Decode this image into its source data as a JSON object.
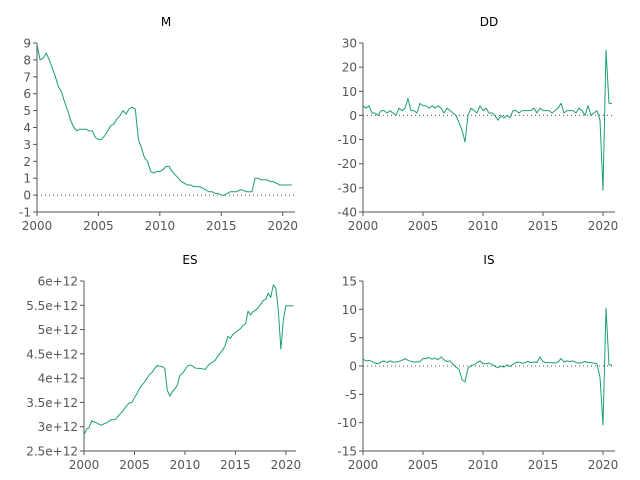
{
  "chart_data": [
    {
      "type": "line",
      "title": "M",
      "xlim": [
        2000,
        2021
      ],
      "ylim": [
        -1,
        9
      ],
      "xticks": [
        2000,
        2005,
        2010,
        2015,
        2020
      ],
      "yticks": [
        -1,
        0,
        1,
        2,
        3,
        4,
        5,
        6,
        7,
        8,
        9
      ],
      "ytick_labels": [
        "-1",
        "0",
        "1",
        "2",
        "3",
        "4",
        "5",
        "6",
        "7",
        "8",
        "9"
      ],
      "zero_line": true,
      "grid": false,
      "series": [
        {
          "color": "#1b9e77",
          "x": [
            2000.0,
            2000.25,
            2000.5,
            2000.75,
            2001.0,
            2001.25,
            2001.5,
            2001.75,
            2002.0,
            2002.25,
            2002.5,
            2002.75,
            2003.0,
            2003.25,
            2003.5,
            2003.75,
            2004.0,
            2004.25,
            2004.5,
            2004.75,
            2005.0,
            2005.25,
            2005.5,
            2005.75,
            2006.0,
            2006.25,
            2006.5,
            2006.75,
            2007.0,
            2007.25,
            2007.5,
            2007.75,
            2008.0,
            2008.25,
            2008.5,
            2008.75,
            2009.0,
            2009.25,
            2009.5,
            2009.75,
            2010.0,
            2010.25,
            2010.5,
            2010.75,
            2011.0,
            2011.25,
            2011.5,
            2011.75,
            2012.0,
            2012.25,
            2012.5,
            2012.75,
            2013.0,
            2013.25,
            2013.5,
            2013.75,
            2014.0,
            2014.25,
            2014.5,
            2014.75,
            2015.0,
            2015.25,
            2015.5,
            2015.75,
            2016.0,
            2016.25,
            2016.5,
            2016.75,
            2017.0,
            2017.25,
            2017.5,
            2017.75,
            2018.0,
            2018.25,
            2018.5,
            2018.75,
            2019.0,
            2019.25,
            2019.5,
            2019.75,
            2020.0,
            2020.25,
            2020.5,
            2020.75
          ],
          "y": [
            8.9,
            8.0,
            8.1,
            8.4,
            8.0,
            7.5,
            7.0,
            6.4,
            6.1,
            5.5,
            5.0,
            4.4,
            4.0,
            3.8,
            3.9,
            3.9,
            3.9,
            3.8,
            3.8,
            3.4,
            3.3,
            3.3,
            3.5,
            3.8,
            4.1,
            4.2,
            4.5,
            4.7,
            5.0,
            4.8,
            5.1,
            5.2,
            5.1,
            3.3,
            2.8,
            2.2,
            2.0,
            1.4,
            1.3,
            1.4,
            1.4,
            1.5,
            1.7,
            1.7,
            1.4,
            1.2,
            1.0,
            0.8,
            0.7,
            0.6,
            0.6,
            0.5,
            0.5,
            0.5,
            0.4,
            0.3,
            0.2,
            0.2,
            0.1,
            0.1,
            0.0,
            0.0,
            0.1,
            0.2,
            0.2,
            0.2,
            0.3,
            0.3,
            0.2,
            0.2,
            0.2,
            1.0,
            1.0,
            0.9,
            0.9,
            0.9,
            0.8,
            0.8,
            0.7,
            0.6,
            0.6,
            0.6,
            0.6,
            0.6
          ]
        }
      ]
    },
    {
      "type": "line",
      "title": "DD",
      "xlim": [
        2000,
        2021
      ],
      "ylim": [
        -40,
        30
      ],
      "xticks": [
        2000,
        2005,
        2010,
        2015,
        2020
      ],
      "yticks": [
        -40,
        -30,
        -20,
        -10,
        0,
        10,
        20,
        30
      ],
      "ytick_labels": [
        "-40",
        "-30",
        "-20",
        "-10",
        "0",
        "10",
        "20",
        "30"
      ],
      "zero_line": true,
      "grid": false,
      "series": [
        {
          "color": "#1b9e77",
          "x": [
            2000.0,
            2000.25,
            2000.5,
            2000.75,
            2001.0,
            2001.25,
            2001.5,
            2001.75,
            2002.0,
            2002.25,
            2002.5,
            2002.75,
            2003.0,
            2003.25,
            2003.5,
            2003.75,
            2004.0,
            2004.25,
            2004.5,
            2004.75,
            2005.0,
            2005.25,
            2005.5,
            2005.75,
            2006.0,
            2006.25,
            2006.5,
            2006.75,
            2007.0,
            2007.25,
            2007.5,
            2007.75,
            2008.0,
            2008.25,
            2008.5,
            2008.75,
            2009.0,
            2009.25,
            2009.5,
            2009.75,
            2010.0,
            2010.25,
            2010.5,
            2010.75,
            2011.0,
            2011.25,
            2011.5,
            2011.75,
            2012.0,
            2012.25,
            2012.5,
            2012.75,
            2013.0,
            2013.25,
            2013.5,
            2013.75,
            2014.0,
            2014.25,
            2014.5,
            2014.75,
            2015.0,
            2015.25,
            2015.5,
            2015.75,
            2016.0,
            2016.25,
            2016.5,
            2016.75,
            2017.0,
            2017.25,
            2017.5,
            2017.75,
            2018.0,
            2018.25,
            2018.5,
            2018.75,
            2019.0,
            2019.25,
            2019.5,
            2019.75,
            2020.0,
            2020.25,
            2020.5,
            2020.75
          ],
          "y": [
            4,
            3,
            4,
            1,
            1,
            0,
            2,
            2,
            1,
            2,
            1,
            0,
            3,
            2,
            3,
            7,
            2,
            2,
            1,
            5,
            4,
            4,
            3,
            4,
            3,
            4,
            3,
            1,
            3,
            2,
            1,
            0,
            -3,
            -6,
            -11,
            0,
            3,
            2,
            1,
            4,
            2,
            3,
            1,
            1,
            0,
            -2,
            0,
            -1,
            0,
            -1,
            2,
            2,
            1,
            2,
            2,
            2,
            2,
            3,
            1,
            3,
            2,
            2,
            2,
            1,
            2,
            3,
            5,
            1,
            2,
            2,
            2,
            1,
            3,
            2,
            0,
            4,
            0,
            1,
            2,
            -2,
            -31,
            27,
            5,
            5
          ]
        }
      ]
    },
    {
      "type": "line",
      "title": "ES",
      "xlim": [
        2000,
        2021
      ],
      "ylim": [
        2500000000000.0,
        6000000000000.0
      ],
      "xticks": [
        2000,
        2005,
        2010,
        2015,
        2020
      ],
      "yticks": [
        2500000000000.0,
        3000000000000.0,
        3500000000000.0,
        4000000000000.0,
        4500000000000.0,
        5000000000000.0,
        5500000000000.0,
        6000000000000.0
      ],
      "ytick_labels": [
        "2.5e+12",
        "3e+12",
        "3.5e+12",
        "4e+12",
        "4.5e+12",
        "5e+12",
        "5.5e+12",
        "6e+12"
      ],
      "zero_line": false,
      "grid": false,
      "series": [
        {
          "color": "#1b9e77",
          "x": [
            2000.0,
            2000.25,
            2000.5,
            2000.75,
            2001.0,
            2001.25,
            2001.5,
            2001.75,
            2002.0,
            2002.25,
            2002.5,
            2002.75,
            2003.0,
            2003.25,
            2003.5,
            2003.75,
            2004.0,
            2004.25,
            2004.5,
            2004.75,
            2005.0,
            2005.25,
            2005.5,
            2005.75,
            2006.0,
            2006.25,
            2006.5,
            2006.75,
            2007.0,
            2007.25,
            2007.5,
            2007.75,
            2008.0,
            2008.25,
            2008.5,
            2008.75,
            2009.0,
            2009.25,
            2009.5,
            2009.75,
            2010.0,
            2010.25,
            2010.5,
            2010.75,
            2011.0,
            2011.25,
            2011.5,
            2011.75,
            2012.0,
            2012.25,
            2012.5,
            2012.75,
            2013.0,
            2013.25,
            2013.5,
            2013.75,
            2014.0,
            2014.25,
            2014.5,
            2014.75,
            2015.0,
            2015.25,
            2015.5,
            2015.75,
            2016.0,
            2016.25,
            2016.5,
            2016.75,
            2017.0,
            2017.25,
            2017.5,
            2017.75,
            2018.0,
            2018.25,
            2018.5,
            2018.75,
            2019.0,
            2019.25,
            2019.5,
            2019.75,
            2020.0,
            2020.25,
            2020.5,
            2020.75
          ],
          "y": [
            2830000000000.0,
            2950000000000.0,
            2980000000000.0,
            3120000000000.0,
            3100000000000.0,
            3080000000000.0,
            3050000000000.0,
            3030000000000.0,
            3060000000000.0,
            3080000000000.0,
            3120000000000.0,
            3150000000000.0,
            3140000000000.0,
            3180000000000.0,
            3250000000000.0,
            3300000000000.0,
            3370000000000.0,
            3440000000000.0,
            3490000000000.0,
            3500000000000.0,
            3600000000000.0,
            3680000000000.0,
            3780000000000.0,
            3860000000000.0,
            3920000000000.0,
            4000000000000.0,
            4080000000000.0,
            4120000000000.0,
            4200000000000.0,
            4260000000000.0,
            4250000000000.0,
            4240000000000.0,
            4200000000000.0,
            3750000000000.0,
            3630000000000.0,
            3720000000000.0,
            3780000000000.0,
            3860000000000.0,
            4060000000000.0,
            4100000000000.0,
            4170000000000.0,
            4250000000000.0,
            4270000000000.0,
            4250000000000.0,
            4210000000000.0,
            4200000000000.0,
            4200000000000.0,
            4190000000000.0,
            4180000000000.0,
            4250000000000.0,
            4300000000000.0,
            4330000000000.0,
            4370000000000.0,
            4450000000000.0,
            4520000000000.0,
            4580000000000.0,
            4680000000000.0,
            4860000000000.0,
            4820000000000.0,
            4900000000000.0,
            4940000000000.0,
            4980000000000.0,
            5020000000000.0,
            5080000000000.0,
            5120000000000.0,
            5380000000000.0,
            5300000000000.0,
            5370000000000.0,
            5400000000000.0,
            5450000000000.0,
            5520000000000.0,
            5600000000000.0,
            5620000000000.0,
            5750000000000.0,
            5660000000000.0,
            5920000000000.0,
            5850000000000.0,
            5400000000000.0,
            4600000000000.0,
            5200000000000.0,
            5490000000000.0,
            5490000000000.0,
            5490000000000.0,
            5490000000000.0
          ]
        }
      ]
    },
    {
      "type": "line",
      "title": "IS",
      "xlim": [
        2000,
        2021
      ],
      "ylim": [
        -15,
        15
      ],
      "xticks": [
        2000,
        2005,
        2010,
        2015,
        2020
      ],
      "yticks": [
        -15,
        -10,
        -5,
        0,
        5,
        10,
        15
      ],
      "ytick_labels": [
        "-15",
        "-10",
        "-5",
        "0",
        "5",
        "10",
        "15"
      ],
      "zero_line": true,
      "grid": false,
      "series": [
        {
          "color": "#1b9e77",
          "x": [
            2000.0,
            2000.25,
            2000.5,
            2000.75,
            2001.0,
            2001.25,
            2001.5,
            2001.75,
            2002.0,
            2002.25,
            2002.5,
            2002.75,
            2003.0,
            2003.25,
            2003.5,
            2003.75,
            2004.0,
            2004.25,
            2004.5,
            2004.75,
            2005.0,
            2005.25,
            2005.5,
            2005.75,
            2006.0,
            2006.25,
            2006.5,
            2006.75,
            2007.0,
            2007.25,
            2007.5,
            2007.75,
            2008.0,
            2008.25,
            2008.5,
            2008.75,
            2009.0,
            2009.25,
            2009.5,
            2009.75,
            2010.0,
            2010.25,
            2010.5,
            2010.75,
            2011.0,
            2011.25,
            2011.5,
            2011.75,
            2012.0,
            2012.25,
            2012.5,
            2012.75,
            2013.0,
            2013.25,
            2013.5,
            2013.75,
            2014.0,
            2014.25,
            2014.5,
            2014.75,
            2015.0,
            2015.25,
            2015.5,
            2015.75,
            2016.0,
            2016.25,
            2016.5,
            2016.75,
            2017.0,
            2017.25,
            2017.5,
            2017.75,
            2018.0,
            2018.25,
            2018.5,
            2018.75,
            2019.0,
            2019.25,
            2019.5,
            2019.75,
            2020.0,
            2020.25,
            2020.5,
            2020.75
          ],
          "y": [
            1.2,
            0.9,
            1.0,
            0.8,
            0.5,
            0.4,
            0.7,
            0.9,
            0.6,
            0.9,
            0.7,
            0.7,
            0.8,
            1.0,
            1.3,
            1.0,
            0.8,
            0.7,
            0.7,
            0.8,
            1.3,
            1.3,
            1.5,
            1.2,
            1.4,
            1.1,
            1.6,
            1.1,
            0.8,
            0.9,
            0.3,
            -0.2,
            -0.6,
            -2.4,
            -2.8,
            -0.4,
            0.1,
            0.2,
            0.6,
            0.9,
            0.4,
            0.4,
            0.5,
            0.3,
            -0.1,
            -0.3,
            0.0,
            -0.2,
            0.2,
            -0.1,
            0.3,
            0.6,
            0.7,
            0.5,
            0.6,
            0.8,
            0.6,
            0.7,
            0.6,
            1.6,
            0.8,
            0.6,
            0.6,
            0.6,
            0.5,
            0.7,
            1.3,
            0.7,
            0.9,
            0.8,
            0.9,
            0.6,
            0.5,
            0.6,
            0.8,
            0.6,
            0.6,
            0.5,
            0.4,
            -2.0,
            -10.4,
            10.2,
            0.2,
            0.2
          ]
        }
      ]
    }
  ]
}
